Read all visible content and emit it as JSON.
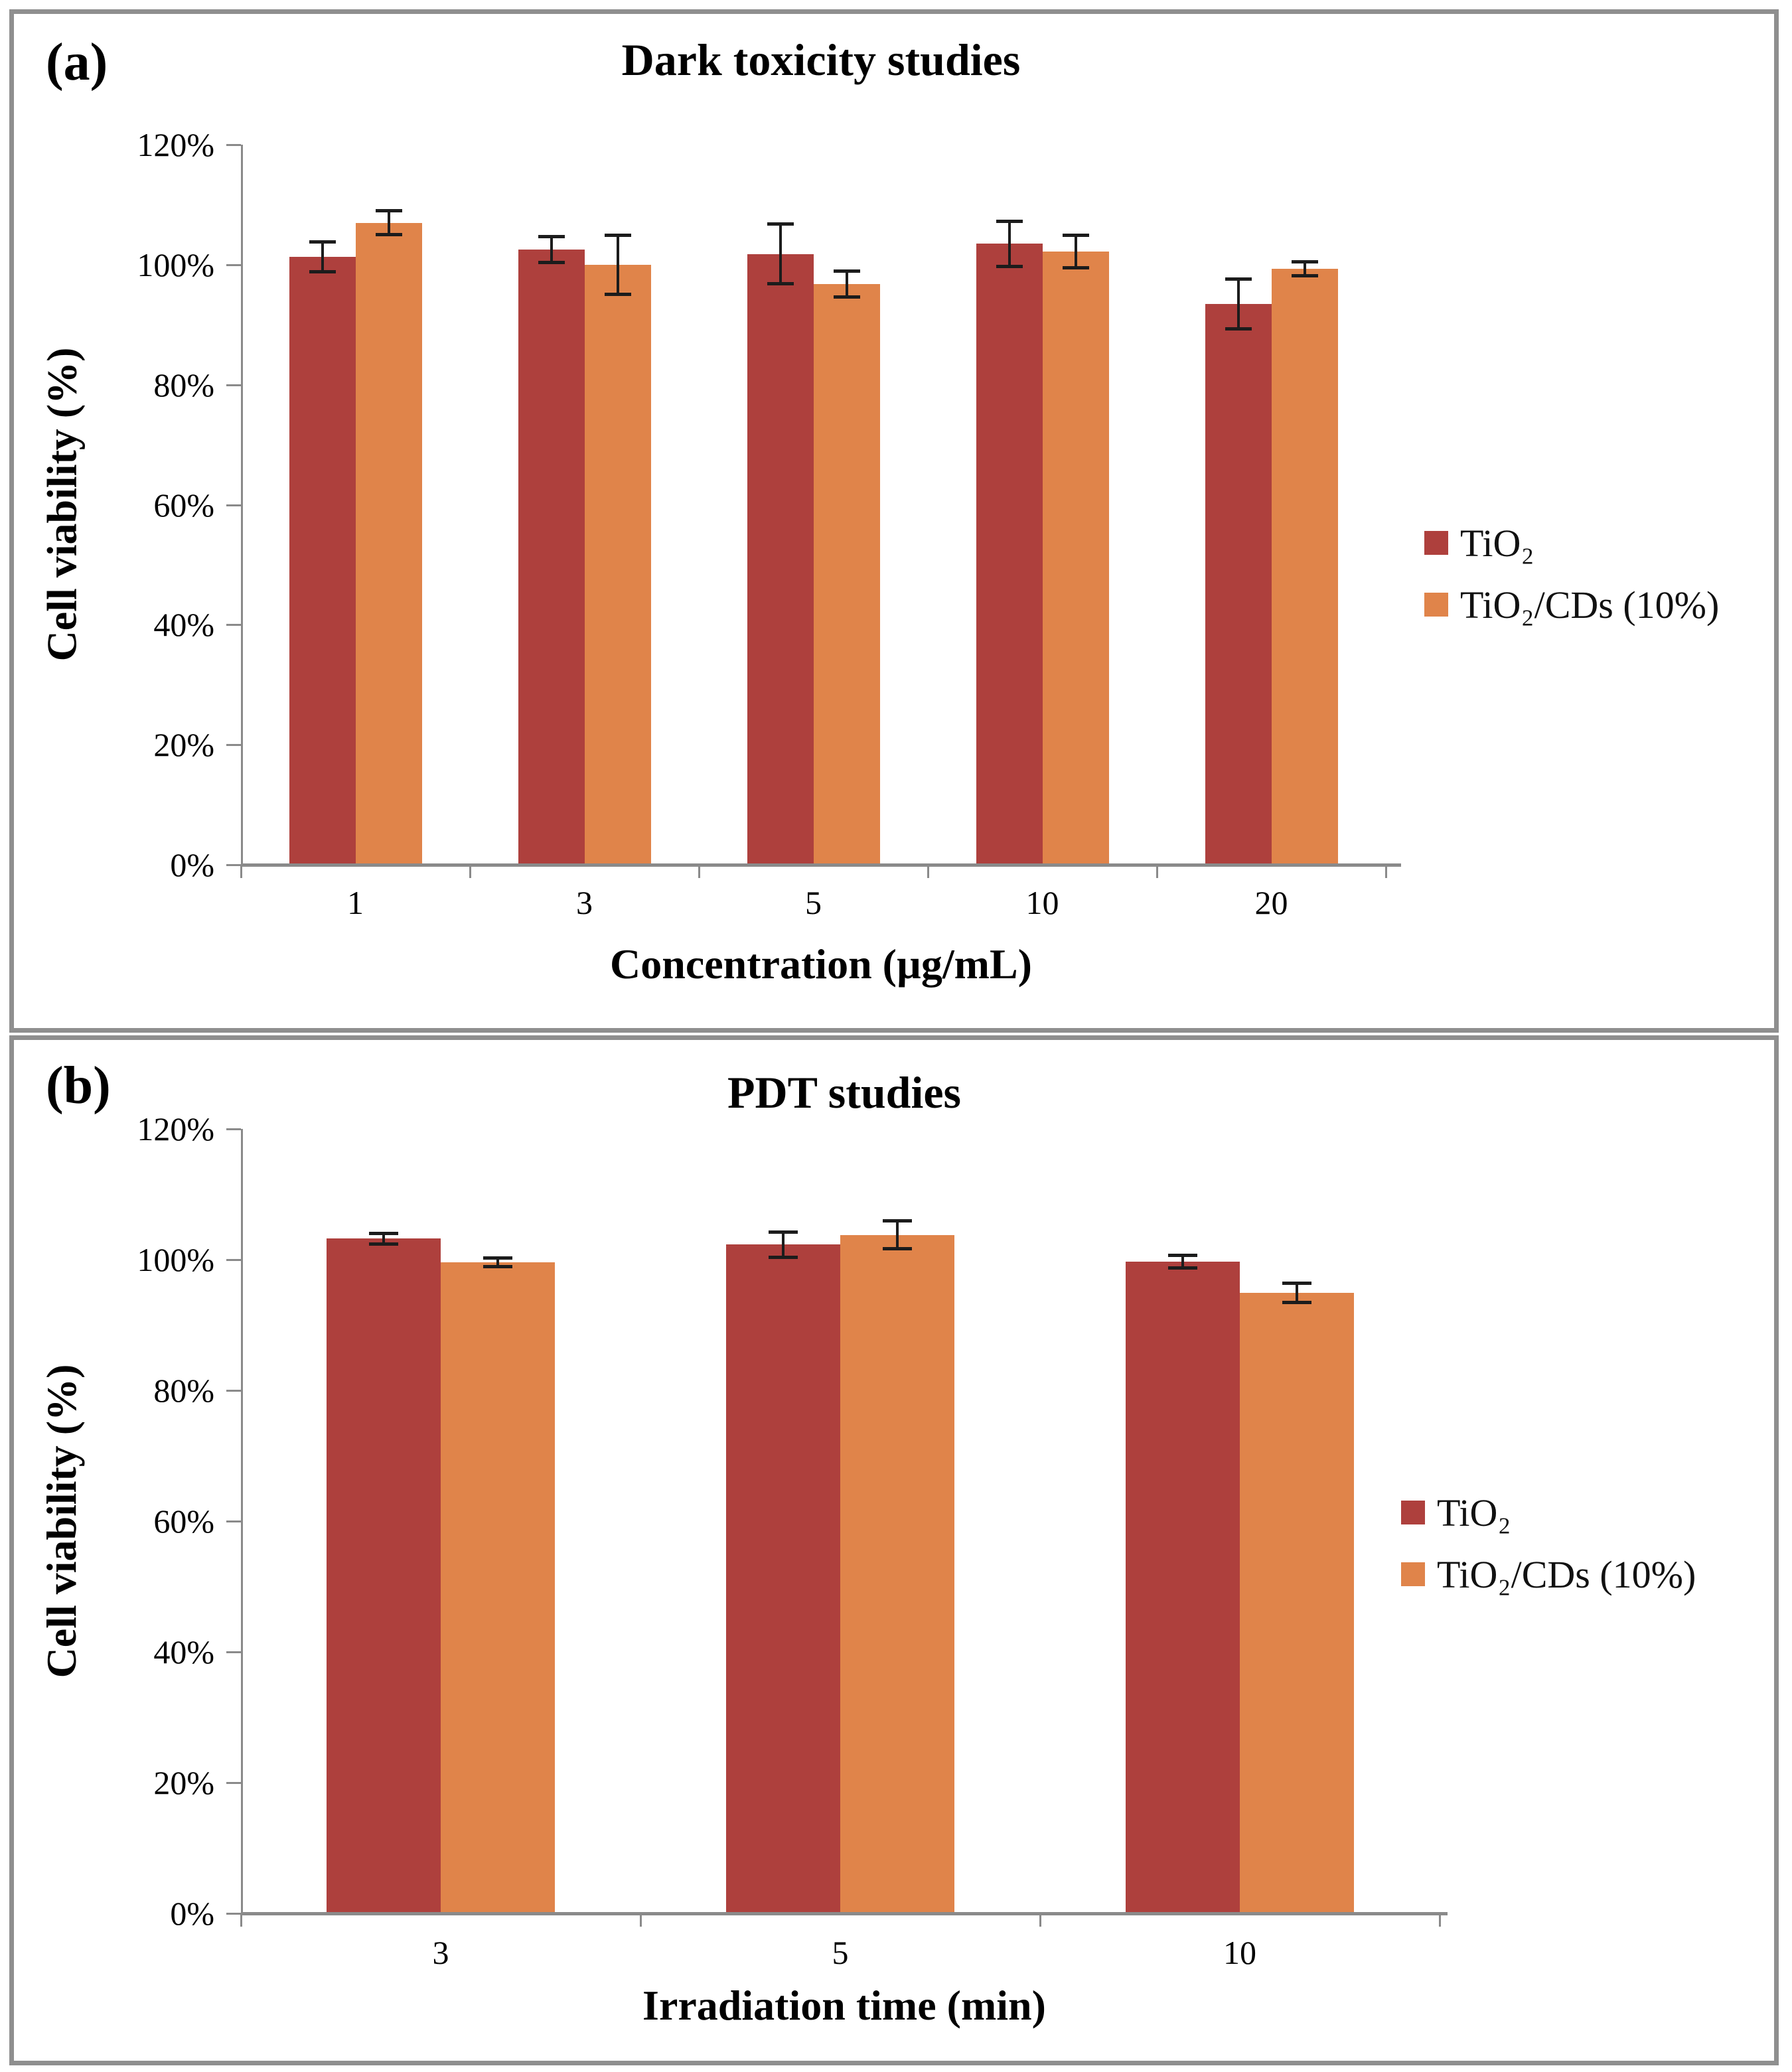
{
  "panel_labels": {
    "a": "(a)",
    "b": "(b)"
  },
  "chart_data": [
    {
      "type": "bar",
      "panel": "a",
      "title": "Dark toxicity studies",
      "xlabel": "Concentration (µg/mL)",
      "ylabel": "Cell viability (%)",
      "categories": [
        "1",
        "3",
        "5",
        "10",
        "20"
      ],
      "series": [
        {
          "name": "TiO₂",
          "color": "#AE403D",
          "values": [
            101.3,
            102.5,
            101.8,
            103.5,
            93.5
          ],
          "errors": [
            2.5,
            2.2,
            5.0,
            3.8,
            4.2
          ]
        },
        {
          "name": "TiO₂/CDs (10%)",
          "color": "#E0844A",
          "values": [
            107.0,
            100.0,
            96.8,
            102.2,
            99.3
          ],
          "errors": [
            2.0,
            5.0,
            2.2,
            2.8,
            1.2
          ]
        }
      ],
      "ylim": [
        0,
        120
      ],
      "ytick_step": 20,
      "ytick_suffix": "%",
      "grid": false,
      "legend_position": "right"
    },
    {
      "type": "bar",
      "panel": "b",
      "title": "PDT studies",
      "xlabel": "Irradiation time (min)",
      "ylabel": "Cell viability (%)",
      "categories": [
        "3",
        "5",
        "10"
      ],
      "series": [
        {
          "name": "TiO₂",
          "color": "#AE403D",
          "values": [
            103.2,
            102.3,
            99.7
          ],
          "errors": [
            0.9,
            2.0,
            1.0
          ]
        },
        {
          "name": "TiO₂/CDs (10%)",
          "color": "#E0844A",
          "values": [
            99.6,
            103.8,
            94.9
          ],
          "errors": [
            0.7,
            2.2,
            1.5
          ]
        }
      ],
      "ylim": [
        0,
        120
      ],
      "ytick_step": 20,
      "ytick_suffix": "%",
      "grid": false,
      "legend_position": "right"
    }
  ]
}
